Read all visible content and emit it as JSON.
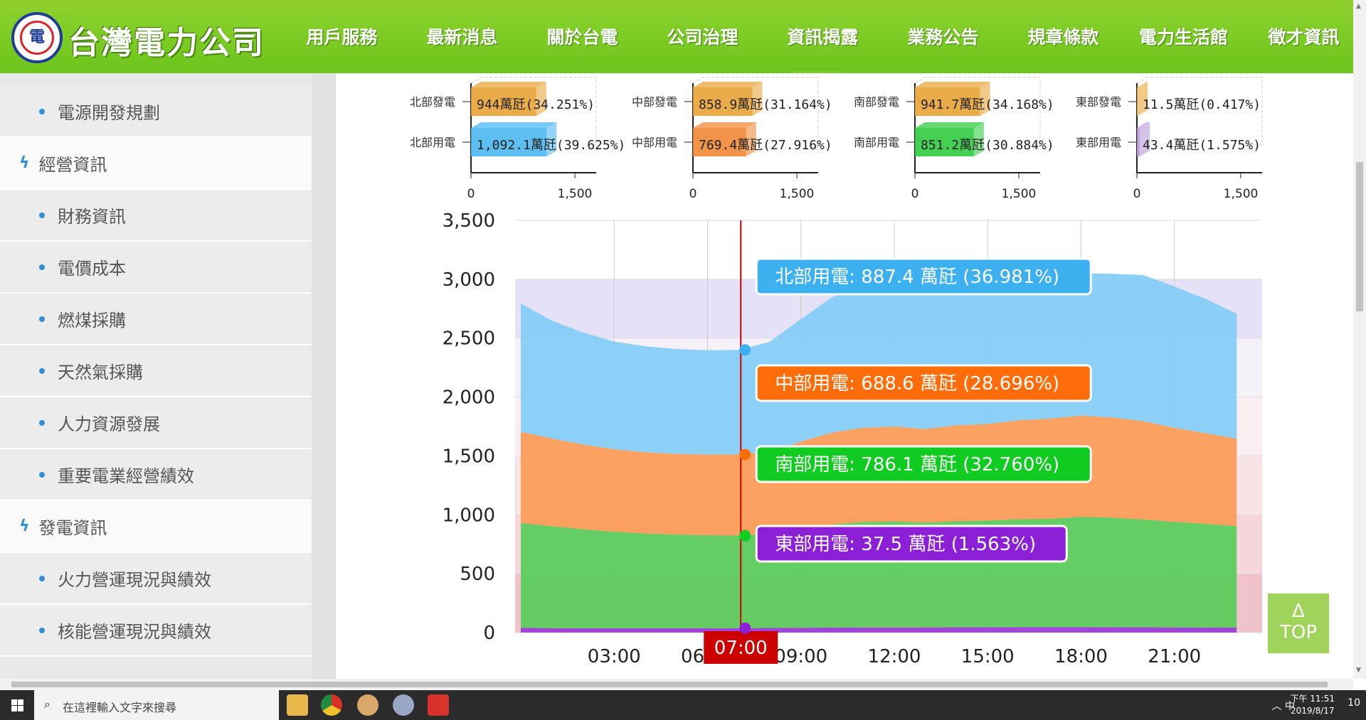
{
  "header": {
    "brand": "台灣電力公司",
    "nav": [
      "用戶服務",
      "最新消息",
      "關於台電",
      "公司治理",
      "資訊揭露",
      "業務公告",
      "規章條款",
      "電力生活館",
      "徵才資訊"
    ],
    "active_index": 4
  },
  "sidebar": {
    "items": [
      {
        "type": "sub",
        "label": "電源開發規劃"
      },
      {
        "type": "cat",
        "label": "經營資訊"
      },
      {
        "type": "sub",
        "label": "財務資訊"
      },
      {
        "type": "sub",
        "label": "電價成本"
      },
      {
        "type": "sub",
        "label": "燃煤採購"
      },
      {
        "type": "sub",
        "label": "天然氣採購"
      },
      {
        "type": "sub",
        "label": "人力資源發展"
      },
      {
        "type": "sub",
        "label": "重要電業經營績效"
      },
      {
        "type": "cat",
        "label": "發電資訊"
      },
      {
        "type": "sub",
        "label": "火力營運現況與績效"
      },
      {
        "type": "sub",
        "label": "核能營運現況與績效"
      }
    ]
  },
  "chart_data": [
    {
      "type": "bar",
      "orientation": "horizontal",
      "region": "北部",
      "categories": [
        "北部發電",
        "北部用電"
      ],
      "values": [
        944,
        1092.1
      ],
      "labels": [
        "944萬瓩(34.251%)",
        "1,092.1萬瓩(39.625%)"
      ],
      "colors": [
        "#e8a53a",
        "#4fb8f0"
      ],
      "xticks": [
        "0",
        "1,500"
      ],
      "xlim": [
        0,
        1800
      ]
    },
    {
      "type": "bar",
      "orientation": "horizontal",
      "region": "中部",
      "categories": [
        "中部發電",
        "中部用電"
      ],
      "values": [
        858.9,
        769.4
      ],
      "labels": [
        "858.9萬瓩(31.164%)",
        "769.4萬瓩(27.916%)"
      ],
      "colors": [
        "#e8a53a",
        "#f08a3a"
      ],
      "xticks": [
        "0",
        "1,500"
      ],
      "xlim": [
        0,
        1800
      ]
    },
    {
      "type": "bar",
      "orientation": "horizontal",
      "region": "南部",
      "categories": [
        "南部發電",
        "南部用電"
      ],
      "values": [
        941.7,
        851.2
      ],
      "labels": [
        "941.7萬瓩(34.168%)",
        "851.2萬瓩(30.884%)"
      ],
      "colors": [
        "#e8a53a",
        "#33cc44"
      ],
      "xticks": [
        "0",
        "1,500"
      ],
      "xlim": [
        0,
        1800
      ]
    },
    {
      "type": "bar",
      "orientation": "horizontal",
      "region": "東部",
      "categories": [
        "東部發電",
        "東部用電"
      ],
      "values": [
        11.5,
        43.4
      ],
      "labels": [
        "11.5萬瓩(0.417%)",
        "43.4萬瓩(1.575%)"
      ],
      "colors": [
        "#e8a53a",
        "#b89ad8"
      ],
      "xticks": [
        "0",
        "1,500"
      ],
      "xlim": [
        0,
        1800
      ]
    },
    {
      "type": "area",
      "stacked": true,
      "x_hours": [
        0,
        1,
        2,
        3,
        4,
        5,
        6,
        7,
        8,
        9,
        10,
        11,
        12,
        13,
        14,
        15,
        16,
        17,
        18,
        19,
        20,
        21,
        22,
        23
      ],
      "xticks": [
        "03:00",
        "06:00",
        "09:00",
        "12:00",
        "15:00",
        "18:00",
        "21:00"
      ],
      "yticks": [
        "0",
        "500",
        "1,000",
        "1,500",
        "2,000",
        "2,500",
        "3,000",
        "3,500"
      ],
      "ylim": [
        0,
        3500
      ],
      "series": [
        {
          "name": "東部用電",
          "color": "#9b3fd6",
          "values": [
            40,
            38,
            37,
            36,
            36,
            37,
            37,
            37.5,
            39,
            41,
            43,
            44,
            44,
            44,
            45,
            46,
            47,
            47,
            47,
            46,
            45,
            44,
            43,
            42
          ]
        },
        {
          "name": "南部用電",
          "color": "#5ccc5c",
          "values": [
            890,
            865,
            840,
            820,
            805,
            795,
            790,
            786,
            795,
            840,
            875,
            895,
            900,
            890,
            900,
            905,
            915,
            920,
            935,
            930,
            915,
            895,
            880,
            860
          ]
        },
        {
          "name": "中部用電",
          "color": "#fb9d5a",
          "values": [
            775,
            745,
            720,
            700,
            690,
            685,
            685,
            689,
            700,
            740,
            780,
            800,
            805,
            795,
            815,
            820,
            840,
            850,
            860,
            850,
            835,
            800,
            770,
            745
          ]
        },
        {
          "name": "北部用電",
          "color": "#86ccf7",
          "values": [
            1090,
            1000,
            950,
            915,
            900,
            890,
            885,
            887,
            935,
            1040,
            1150,
            1205,
            1230,
            1215,
            1245,
            1250,
            1245,
            1230,
            1210,
            1220,
            1240,
            1200,
            1140,
            1060
          ]
        }
      ],
      "cursor": {
        "time_label": "07:00",
        "tooltips": [
          {
            "series": "北部用電",
            "text": "北部用電: 887.4 萬瓩 (36.981%)",
            "color": "#3db0f0",
            "level": 2400
          },
          {
            "series": "中部用電",
            "text": "中部用電: 688.6 萬瓩 (28.696%)",
            "color": "#ff6d0a",
            "level": 1512
          },
          {
            "series": "南部用電",
            "text": "南部用電: 786.1 萬瓩 (32.760%)",
            "color": "#10cc20",
            "level": 823
          },
          {
            "series": "東部用電",
            "text": "東部用電: 37.5 萬瓩 (1.563%)",
            "color": "#8c20d6",
            "level": 37.5
          }
        ]
      }
    }
  ],
  "top_button": {
    "arrow": "Δ",
    "label": "TOP"
  },
  "taskbar": {
    "search_placeholder": "在這裡輸入文字來搜尋",
    "tray": "︿  中",
    "time": "下午 11:51",
    "date": "2019/8/17",
    "notif": "10"
  }
}
